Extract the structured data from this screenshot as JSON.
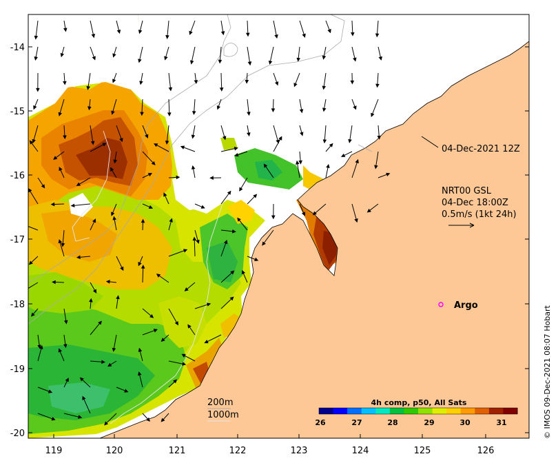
{
  "map": {
    "x_ticks": [
      "119",
      "120",
      "121",
      "122",
      "123",
      "124",
      "125",
      "126"
    ],
    "y_ticks": [
      "-14",
      "-15",
      "-16",
      "-17",
      "-18",
      "-19",
      "-20"
    ],
    "land_color": "#fdc896",
    "no_data_color": "#ffffff"
  },
  "annotations": {
    "coastline_date": "04-Dec-2021 12Z",
    "current_model": "NRT00 GSL",
    "current_time": "04-Dec 18:00Z",
    "current_scale": "0.5m/s (1kt 24h)",
    "argo_label": "Argo",
    "argo_marker_color": "#ff00ff"
  },
  "contours": {
    "label_200": "200m",
    "label_1000": "1000m"
  },
  "colorbar": {
    "title": "4h comp, p50, All Sats",
    "ticks": [
      "26",
      "27",
      "28",
      "29",
      "30",
      "31"
    ],
    "colors": [
      "#00008f",
      "#0000ff",
      "#006fff",
      "#00bfff",
      "#00e8c0",
      "#00c040",
      "#30c800",
      "#90e000",
      "#e0ef00",
      "#ffcf00",
      "#ff9a00",
      "#e06000",
      "#a02000",
      "#800000"
    ]
  },
  "credit": "© IMOS 09-Dec-2021 08:07 Hobart"
}
